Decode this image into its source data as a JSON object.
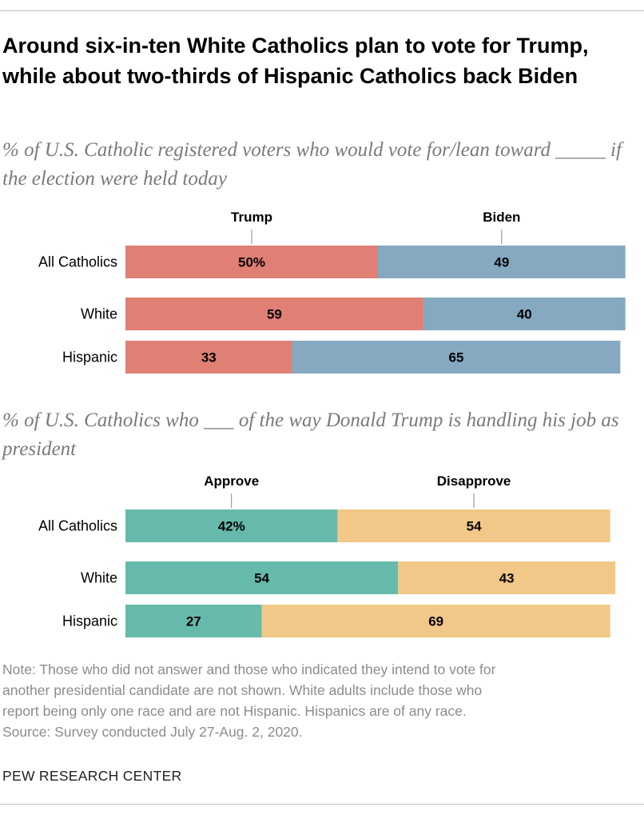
{
  "title": "Around six-in-ten White Catholics plan to vote for Trump, while about two-thirds of Hispanic Catholics back Biden",
  "chart_data": [
    {
      "type": "bar",
      "orientation": "horizontal-stacked",
      "subtitle": "% of U.S. Catholic registered voters who would vote for/lean toward _____ if the election were held today",
      "categories": [
        "All Catholics",
        "White",
        "Hispanic"
      ],
      "series": [
        {
          "name": "Trump",
          "color": "#e07f74",
          "values": [
            50,
            59,
            33
          ],
          "labels": [
            "50%",
            "59",
            "33"
          ]
        },
        {
          "name": "Biden",
          "color": "#85a9c1",
          "values": [
            49,
            40,
            65
          ],
          "labels": [
            "49",
            "40",
            "65"
          ]
        }
      ],
      "xlim": [
        0,
        100
      ]
    },
    {
      "type": "bar",
      "orientation": "horizontal-stacked",
      "subtitle": "% of U.S. Catholics who ___ of the way Donald Trump is handling his job as president",
      "categories": [
        "All Catholics",
        "White",
        "Hispanic"
      ],
      "series": [
        {
          "name": "Approve",
          "color": "#66baab",
          "values": [
            42,
            54,
            27
          ],
          "labels": [
            "42%",
            "54",
            "27"
          ]
        },
        {
          "name": "Disapprove",
          "color": "#f2c888",
          "values": [
            54,
            43,
            69
          ],
          "labels": [
            "54",
            "43",
            "69"
          ]
        }
      ],
      "xlim": [
        0,
        100
      ]
    }
  ],
  "note_lines": [
    "Note: Those who did not answer and those who indicated they intend to vote for",
    "another presidential candidate are not shown. White adults include those who",
    "report being only one race and are not Hispanic. Hispanics are of any race.",
    "Source: Survey conducted July 27-Aug. 2, 2020."
  ],
  "brand": "PEW RESEARCH CENTER"
}
